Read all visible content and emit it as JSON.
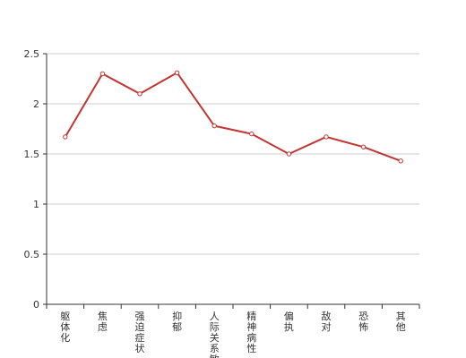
{
  "chart_data": {
    "type": "line",
    "categories": [
      "躯体化",
      "焦虑",
      "强迫症状",
      "抑郁",
      "人际关系敏感",
      "精神病性",
      "偏执",
      "敌对",
      "恐怖",
      "其他"
    ],
    "series": [
      {
        "values": [
          1.67,
          2.3,
          2.1,
          2.31,
          1.78,
          1.7,
          1.5,
          1.67,
          1.57,
          1.43
        ]
      }
    ],
    "y_ticks": [
      "0",
      "0.5",
      "1",
      "1.5",
      "2",
      "2.5"
    ],
    "ylim": [
      0,
      2.5
    ],
    "grid": true,
    "colors": {
      "line": "#c23531",
      "grid": "#cccccc",
      "axis": "#333333"
    }
  }
}
